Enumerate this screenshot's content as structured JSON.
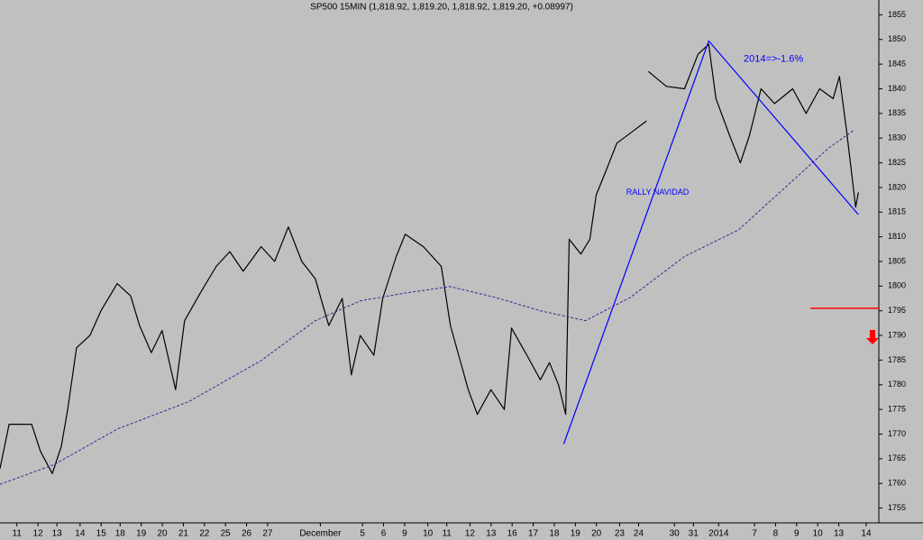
{
  "chart_data": {
    "type": "line",
    "title": "SP500 15MIN (1,818.92, 1,819.20, 1,818.92, 1,819.20, +0.08997)",
    "ylim": [
      1752,
      1858
    ],
    "yticks": [
      1755,
      1760,
      1765,
      1770,
      1775,
      1780,
      1785,
      1790,
      1795,
      1800,
      1805,
      1810,
      1815,
      1820,
      1825,
      1830,
      1835,
      1840,
      1845,
      1850,
      1855
    ],
    "xlim": [
      0,
      41.7
    ],
    "xticks": [
      {
        "value": 0.8,
        "label": "11"
      },
      {
        "value": 1.8,
        "label": "12"
      },
      {
        "value": 2.7,
        "label": "13"
      },
      {
        "value": 3.8,
        "label": "14"
      },
      {
        "value": 4.8,
        "label": "15"
      },
      {
        "value": 5.7,
        "label": "18"
      },
      {
        "value": 6.7,
        "label": "19"
      },
      {
        "value": 7.7,
        "label": "20"
      },
      {
        "value": 8.7,
        "label": "21"
      },
      {
        "value": 9.7,
        "label": "22"
      },
      {
        "value": 10.7,
        "label": "25"
      },
      {
        "value": 11.7,
        "label": "26"
      },
      {
        "value": 12.7,
        "label": "27"
      },
      {
        "value": 15.2,
        "label": "December"
      },
      {
        "value": 17.2,
        "label": "5"
      },
      {
        "value": 18.2,
        "label": "6"
      },
      {
        "value": 19.2,
        "label": "9"
      },
      {
        "value": 20.3,
        "label": "10"
      },
      {
        "value": 21.2,
        "label": "11"
      },
      {
        "value": 22.3,
        "label": "12"
      },
      {
        "value": 23.3,
        "label": "13"
      },
      {
        "value": 24.3,
        "label": "16"
      },
      {
        "value": 25.3,
        "label": "17"
      },
      {
        "value": 26.3,
        "label": "18"
      },
      {
        "value": 27.3,
        "label": "19"
      },
      {
        "value": 28.3,
        "label": "20"
      },
      {
        "value": 29.4,
        "label": "23"
      },
      {
        "value": 30.3,
        "label": "24"
      },
      {
        "value": 32,
        "label": "30"
      },
      {
        "value": 32.9,
        "label": "31"
      },
      {
        "value": 34.1,
        "label": "2014"
      },
      {
        "value": 35.8,
        "label": "7"
      },
      {
        "value": 36.8,
        "label": "8"
      },
      {
        "value": 37.8,
        "label": "9"
      },
      {
        "value": 38.8,
        "label": "10"
      },
      {
        "value": 39.8,
        "label": "13"
      },
      {
        "value": 41.1,
        "label": "14"
      }
    ],
    "series": [
      {
        "color": "#000000",
        "dash": false,
        "width": 1.2,
        "x": [
          0,
          0.43,
          1.5,
          1.92,
          2.48,
          2.91,
          3.21,
          3.63,
          4.27,
          4.79,
          5.56,
          6.2,
          6.62,
          7.18,
          7.69,
          8.33,
          8.76,
          9.49,
          10.26,
          10.9,
          11.54,
          12.39,
          13.03,
          13.68,
          14.32,
          14.96,
          15.6,
          16.24,
          16.67,
          17.09,
          17.74,
          18.16,
          18.8,
          19.23,
          20.09,
          20.94,
          21.37,
          22.22,
          22.65,
          23.29,
          23.93,
          24.27,
          25,
          25.64,
          26.07,
          26.5,
          26.84,
          27.01,
          27.56,
          27.99,
          28.29,
          28.72,
          29.27,
          29.91,
          30.68,
          30.72,
          30.77,
          31.62,
          32.48,
          33.12,
          33.63,
          33.97,
          34.62,
          35.13,
          35.56,
          36.11,
          36.75,
          37.61,
          38.25,
          38.89,
          39.53,
          39.83,
          40.17,
          40.6,
          40.73
        ],
        "values": [
          1763,
          1772,
          1772,
          1766.5,
          1762,
          1767.5,
          1775,
          1787.5,
          1790,
          1795,
          1800.5,
          1798,
          1792,
          1786.5,
          1791,
          1779,
          1793,
          1798.5,
          1804,
          1807,
          1803,
          1808,
          1805,
          1812,
          1805,
          1801.5,
          1792,
          1797.5,
          1782,
          1790,
          1786,
          1797.5,
          1806,
          1810.5,
          1808,
          1804,
          1792,
          1779,
          1774,
          1779,
          1775,
          1791.5,
          1786,
          1781,
          1784.5,
          1780,
          1774,
          1809.5,
          1806.5,
          1809.5,
          1818.5,
          1823,
          1829,
          1831,
          1833.5,
          null,
          1843.5,
          1840.5,
          1840,
          1847,
          1849,
          1838,
          1830.5,
          1825,
          1830.5,
          1840,
          1837,
          1840,
          1835,
          1840,
          1838,
          1842.5,
          1831.5,
          1816,
          1819
        ]
      },
      {
        "color": "#4b1b8f",
        "dash": true,
        "width": 1,
        "x": [
          0,
          2.56,
          5.56,
          8.97,
          12.39,
          14.96,
          17.09,
          19.23,
          21.37,
          23.5,
          25.64,
          27.78,
          29.91,
          32.48,
          35.04,
          37.18,
          39.32,
          40.51
        ],
        "values": [
          1759.8,
          1763.8,
          1771,
          1776.6,
          1784.9,
          1793,
          1797,
          1798.6,
          1799.9,
          1797.7,
          1795,
          1793,
          1797.7,
          1806,
          1811.4,
          1819.7,
          1828,
          1831.6
        ]
      },
      {
        "color": "#0000ff",
        "dash": false,
        "width": 1.2,
        "x": [
          26.75,
          33.63,
          40.73
        ],
        "values": [
          1768,
          1849.7,
          1814.5
        ]
      },
      {
        "color": "#ff0000",
        "dash": false,
        "width": 1.5,
        "x": [
          38.46,
          41.7
        ],
        "values": [
          1795.5,
          1795.5
        ]
      }
    ],
    "annotations": [
      {
        "text": "2014=>-1.6%",
        "x": 36.7,
        "y": 1846,
        "color": "#0000ff"
      },
      {
        "text": "RALLY NAVIDAD",
        "x": 31.2,
        "y": 1819,
        "color": "#0000ff"
      }
    ]
  }
}
